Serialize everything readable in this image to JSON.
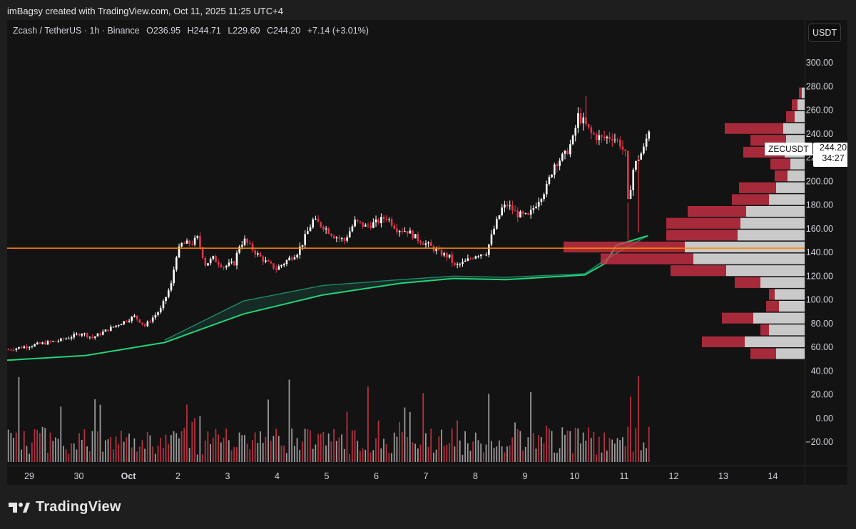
{
  "header": {
    "created_text": "imBagsy created with TradingView.com, Oct 11, 2025 11:25 UTC+4"
  },
  "legend": {
    "symbol": "Zcash / TetherUS · 1h · Binance",
    "open_key": "O",
    "open": "236.95",
    "high_key": "H",
    "high": "244.71",
    "low_key": "L",
    "low": "229.60",
    "close_key": "C",
    "close": "244.20",
    "change": "+7.14 (+3.01%)"
  },
  "currency_button": "USDT",
  "last_price": {
    "symbol": "ZECUSDT",
    "price": "244.20",
    "countdown": "34:27"
  },
  "footer": {
    "brand": "TradingView"
  },
  "colors": {
    "up": "#ffffff",
    "down": "#e0364a",
    "ema": "#22d37a",
    "ribbon": "#1f6b55",
    "hline": "#ff8a00",
    "vp_up": "#c9c9c9",
    "vp_down": "#d9334a"
  },
  "chart_data": {
    "type": "candlestick",
    "price_axis": {
      "ticks": [
        "300.00",
        "280.00",
        "260.00",
        "240.00",
        "220.00",
        "200.00",
        "180.00",
        "160.00",
        "140.00",
        "120.00",
        "100.00",
        "80.00",
        "60.00",
        "40.00",
        "20.00",
        "0.00",
        "−20.00"
      ]
    },
    "time_axis": {
      "ticks": [
        "29",
        "30",
        "Oct",
        "2",
        "3",
        "4",
        "5",
        "6",
        "7",
        "8",
        "9",
        "10",
        "11",
        "12",
        "13",
        "14"
      ]
    },
    "horizontal_level": 143.5,
    "price_path": [
      [
        0,
        58
      ],
      [
        10,
        62
      ],
      [
        20,
        66
      ],
      [
        28,
        72
      ],
      [
        32,
        68
      ],
      [
        38,
        75
      ],
      [
        48,
        86
      ],
      [
        52,
        78
      ],
      [
        58,
        92
      ],
      [
        62,
        113
      ],
      [
        64,
        138
      ],
      [
        66,
        147
      ],
      [
        70,
        148
      ],
      [
        72,
        152
      ],
      [
        75,
        130
      ],
      [
        78,
        135
      ],
      [
        82,
        128
      ],
      [
        86,
        131
      ],
      [
        88,
        146
      ],
      [
        90,
        150
      ],
      [
        94,
        140
      ],
      [
        98,
        132
      ],
      [
        102,
        126
      ],
      [
        106,
        133
      ],
      [
        110,
        140
      ],
      [
        112,
        148
      ],
      [
        116,
        167
      ],
      [
        120,
        162
      ],
      [
        124,
        154
      ],
      [
        128,
        150
      ],
      [
        132,
        166
      ],
      [
        136,
        162
      ],
      [
        140,
        165
      ],
      [
        144,
        170
      ],
      [
        148,
        160
      ],
      [
        152,
        158
      ],
      [
        156,
        151
      ],
      [
        160,
        146
      ],
      [
        164,
        140
      ],
      [
        168,
        136
      ],
      [
        170,
        128
      ],
      [
        174,
        132
      ],
      [
        178,
        138
      ],
      [
        182,
        140
      ],
      [
        185,
        160
      ],
      [
        188,
        177
      ],
      [
        190,
        180
      ],
      [
        194,
        172
      ],
      [
        198,
        170
      ],
      [
        202,
        185
      ],
      [
        205,
        195
      ],
      [
        208,
        215
      ],
      [
        212,
        222
      ],
      [
        215,
        235
      ],
      [
        217,
        255
      ],
      [
        219,
        250
      ],
      [
        222,
        240
      ],
      [
        226,
        236
      ],
      [
        230,
        238
      ],
      [
        233,
        232
      ],
      [
        235,
        222
      ],
      [
        236,
        182
      ],
      [
        238,
        210
      ],
      [
        240,
        220
      ],
      [
        242,
        227
      ],
      [
        244,
        244.2
      ]
    ],
    "ema_slow": [
      [
        0,
        49
      ],
      [
        30,
        53
      ],
      [
        60,
        64
      ],
      [
        90,
        88
      ],
      [
        120,
        104
      ],
      [
        150,
        114
      ],
      [
        170,
        118
      ],
      [
        190,
        117
      ],
      [
        220,
        121
      ],
      [
        228,
        131
      ],
      [
        232,
        146
      ],
      [
        244,
        154
      ]
    ],
    "ribbon_upper": [
      [
        60,
        66
      ],
      [
        90,
        99
      ],
      [
        120,
        112
      ],
      [
        150,
        117
      ],
      [
        170,
        120
      ],
      [
        190,
        119
      ],
      [
        220,
        122
      ],
      [
        228,
        134
      ],
      [
        244,
        154
      ]
    ],
    "volume_profile": [
      {
        "price": 270,
        "up": 4,
        "down": 4
      },
      {
        "price": 260,
        "up": 10,
        "down": 8
      },
      {
        "price": 250,
        "up": 14,
        "down": 12
      },
      {
        "price": 240,
        "up": 30,
        "down": 82
      },
      {
        "price": 230,
        "up": 26,
        "down": 50
      },
      {
        "price": 220,
        "up": 28,
        "down": 58
      },
      {
        "price": 210,
        "up": 20,
        "down": 28
      },
      {
        "price": 200,
        "up": 24,
        "down": 18
      },
      {
        "price": 190,
        "up": 40,
        "down": 52
      },
      {
        "price": 180,
        "up": 50,
        "down": 52
      },
      {
        "price": 170,
        "up": 82,
        "down": 82
      },
      {
        "price": 160,
        "up": 90,
        "down": 104
      },
      {
        "price": 150,
        "up": 94,
        "down": 100
      },
      {
        "price": 140,
        "up": 168,
        "down": 170
      },
      {
        "price": 130,
        "up": 156,
        "down": 130
      },
      {
        "price": 120,
        "up": 110,
        "down": 78
      },
      {
        "price": 110,
        "up": 62,
        "down": 36
      },
      {
        "price": 100,
        "up": 42,
        "down": 8
      },
      {
        "price": 90,
        "up": 36,
        "down": 18
      },
      {
        "price": 80,
        "up": 72,
        "down": 44
      },
      {
        "price": 70,
        "up": 50,
        "down": 12
      },
      {
        "price": 60,
        "up": 84,
        "down": 60
      },
      {
        "price": 50,
        "up": 40,
        "down": 36
      }
    ]
  }
}
